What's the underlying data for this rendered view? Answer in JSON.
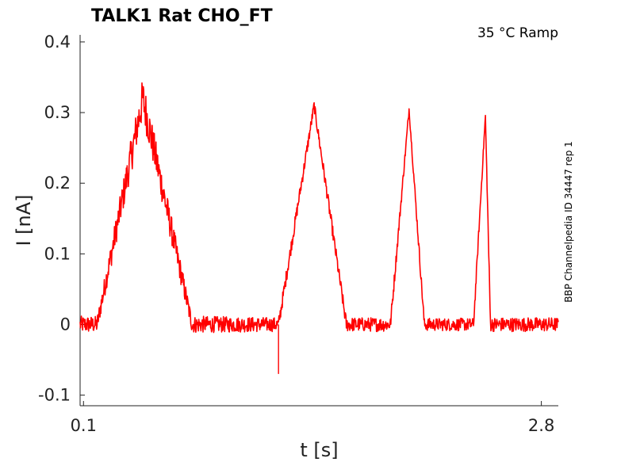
{
  "chart_data": {
    "type": "line",
    "title": "TALK1  Rat  CHO_FT",
    "condition": "35 °C  Ramp",
    "side_label": "BBP Channelpedia ID 34447 rep 1",
    "xlabel": "t [s]",
    "ylabel": "I [nA]",
    "xlim": [
      0.08,
      2.9
    ],
    "ylim": [
      -0.115,
      0.41
    ],
    "x_ticks": [
      0.1,
      2.8
    ],
    "x_tick_labels": [
      "0.1",
      "2.8"
    ],
    "y_ticks": [
      -0.1,
      0,
      0.1,
      0.2,
      0.3,
      0.4
    ],
    "y_tick_labels": [
      "-0.1",
      "0",
      "0.1",
      "0.2",
      "0.3",
      "0.4"
    ],
    "grid": false,
    "series": [
      {
        "color": "#ff0000",
        "x": [
          0.08,
          0.18,
          0.45,
          0.74,
          1.25,
          1.46,
          1.65,
          1.91,
          2.02,
          2.11,
          2.4,
          2.47,
          2.5,
          2.9
        ],
        "y": [
          0.0,
          0.0,
          0.32,
          0.0,
          0.0,
          0.31,
          0.0,
          0.0,
          0.305,
          0.0,
          0.0,
          0.295,
          0.0,
          0.0
        ],
        "noise": [
          0.012,
          0.012,
          0.03,
          0.012,
          0.01,
          0.008,
          0.01,
          0.01,
          0.005,
          0.009,
          0.009,
          0.004,
          0.01,
          0.01
        ]
      }
    ],
    "artifact": {
      "x": 1.25,
      "y": -0.07
    }
  }
}
